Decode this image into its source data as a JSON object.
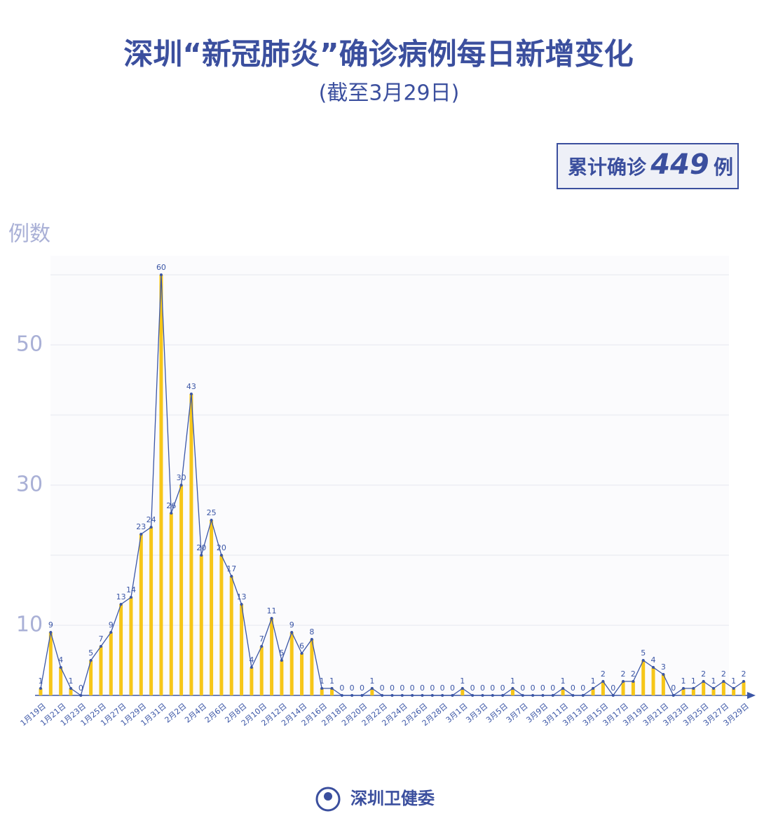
{
  "chart_data": {
    "type": "bar-line",
    "title": "深圳“新冠肺炎”确诊病例每日新增变化",
    "subtitle": "(截至3月29日)",
    "total_label": "累计确诊",
    "total_value": 449,
    "total_unit": "例",
    "y_label": "例数",
    "source": "深圳卫健委",
    "categories": [
      "1月19日",
      null,
      "1月21日",
      null,
      "1月23日",
      null,
      "1月25日",
      null,
      "1月27日",
      null,
      "1月29日",
      null,
      "1月31日",
      null,
      "2月2日",
      null,
      "2月4日",
      null,
      "2月6日",
      null,
      "2月8日",
      null,
      "2月10日",
      null,
      "2月12日",
      null,
      "2月14日",
      null,
      "2月16日",
      null,
      "2月18日",
      null,
      "2月20日",
      null,
      "2月22日",
      null,
      "2月24日",
      null,
      "2月26日",
      null,
      "2月28日",
      null,
      "3月1日",
      null,
      "3月3日",
      null,
      "3月5日",
      null,
      "3月7日",
      null,
      "3月9日",
      null,
      "3月11日",
      null,
      "3月13日",
      null,
      "3月15日",
      null,
      "3月17日",
      null,
      "3月19日",
      null,
      "3月21日",
      null,
      "3月23日",
      null,
      "3月25日",
      null,
      "3月27日",
      null,
      "3月29日"
    ],
    "values": [
      1,
      9,
      4,
      1,
      0,
      5,
      7,
      9,
      13,
      14,
      23,
      24,
      60,
      26,
      30,
      43,
      20,
      25,
      20,
      17,
      13,
      4,
      7,
      11,
      5,
      9,
      6,
      8,
      1,
      1,
      0,
      0,
      0,
      1,
      0,
      0,
      0,
      0,
      0,
      0,
      0,
      0,
      1,
      0,
      0,
      0,
      0,
      1,
      0,
      0,
      0,
      0,
      1,
      0,
      0,
      1,
      2,
      0,
      2,
      2,
      5,
      4,
      3,
      0,
      1,
      1,
      2,
      1,
      2,
      1,
      2
    ],
    "bar_color": "#f6c619",
    "line_color": "#3b56a6",
    "ylim": [
      0,
      63
    ],
    "yticks": [
      10,
      30,
      50
    ],
    "grid_values": [
      10,
      20,
      30,
      40,
      50,
      60
    ],
    "grid": true
  }
}
